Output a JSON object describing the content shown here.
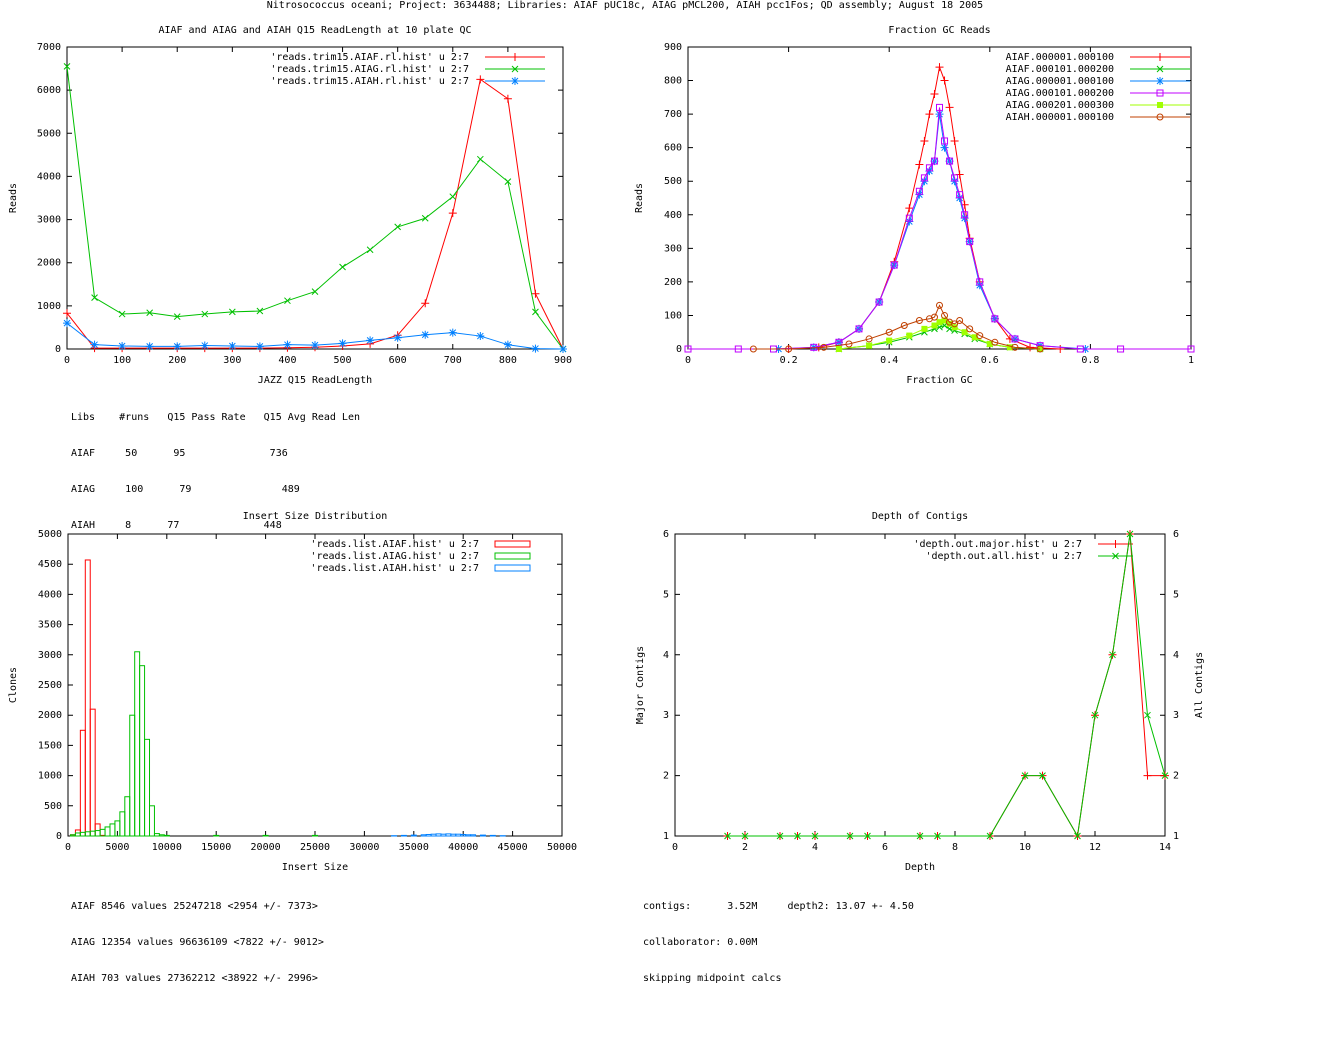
{
  "page_title": "Nitrosococcus oceani; Project: 3634488; Libraries: AIAF pUC18c, AIAG pMCL200, AIAH pcc1Fos; QD assembly; August 18 2005",
  "colors": {
    "red": "#ff0000",
    "green": "#00c000",
    "blue": "#0080ff",
    "magenta": "#c000ff",
    "lime": "#a0ff00",
    "brown": "#c04000"
  },
  "chart_data": [
    {
      "type": "line",
      "title": "AIAF and AIAG and AIAH Q15 ReadLength at 10 plate QC",
      "xlabel": "JAZZ Q15 ReadLength",
      "ylabel": "Reads",
      "xlim": [
        0,
        900
      ],
      "ylim": [
        0,
        7000
      ],
      "xticks": [
        0,
        100,
        200,
        300,
        400,
        500,
        600,
        700,
        800,
        900
      ],
      "yticks": [
        0,
        1000,
        2000,
        3000,
        4000,
        5000,
        6000,
        7000
      ],
      "legend": "top-right",
      "series": [
        {
          "name": "'reads.trim15.AIAF.rl.hist' u 2:7",
          "color": "#ff0000",
          "marker": "+",
          "x": [
            0,
            50,
            100,
            150,
            200,
            250,
            300,
            350,
            400,
            450,
            500,
            550,
            600,
            650,
            700,
            750,
            800,
            850,
            900
          ],
          "y": [
            830,
            20,
            20,
            20,
            20,
            20,
            20,
            20,
            30,
            40,
            70,
            120,
            320,
            1060,
            3150,
            6250,
            5800,
            1280,
            0
          ]
        },
        {
          "name": "'reads.trim15.AIAG.rl.hist' u 2:7",
          "color": "#00c000",
          "marker": "x",
          "x": [
            0,
            50,
            100,
            150,
            200,
            250,
            300,
            350,
            400,
            450,
            500,
            550,
            600,
            650,
            700,
            750,
            800,
            850,
            900
          ],
          "y": [
            6550,
            1190,
            810,
            840,
            750,
            810,
            860,
            880,
            1120,
            1330,
            1900,
            2300,
            2830,
            3030,
            3530,
            4400,
            3880,
            860,
            0
          ]
        },
        {
          "name": "'reads.trim15.AIAH.rl.hist' u 2:7",
          "color": "#0080ff",
          "marker": "*",
          "x": [
            0,
            50,
            100,
            150,
            200,
            250,
            300,
            350,
            400,
            450,
            500,
            550,
            600,
            650,
            700,
            750,
            800,
            850,
            900
          ],
          "y": [
            600,
            100,
            70,
            60,
            60,
            80,
            70,
            60,
            100,
            90,
            130,
            200,
            260,
            330,
            380,
            300,
            100,
            10,
            0
          ]
        }
      ],
      "stats_lines": [
        "Libs    #runs   Q15 Pass Rate   Q15 Avg Read Len",
        "AIAF     50      95              736",
        "AIAG     100      79               489",
        "AIAH     8      77              448"
      ]
    },
    {
      "type": "line",
      "title": "Fraction GC Reads",
      "xlabel": "Fraction GC",
      "ylabel": "Reads",
      "xlim": [
        0,
        1
      ],
      "ylim": [
        0,
        900
      ],
      "xticks": [
        0,
        0.2,
        0.4,
        0.6,
        0.8,
        1
      ],
      "yticks": [
        0,
        100,
        200,
        300,
        400,
        500,
        600,
        700,
        800,
        900
      ],
      "legend": "top-right",
      "series": [
        {
          "name": "AIAF.000001.000100",
          "color": "#ff0000",
          "marker": "+",
          "x": [
            0.2,
            0.26,
            0.3,
            0.34,
            0.38,
            0.41,
            0.44,
            0.46,
            0.47,
            0.48,
            0.49,
            0.5,
            0.51,
            0.52,
            0.53,
            0.54,
            0.55,
            0.56,
            0.58,
            0.61,
            0.64,
            0.68,
            0.74
          ],
          "y": [
            0,
            5,
            20,
            60,
            140,
            260,
            420,
            550,
            620,
            700,
            760,
            840,
            800,
            720,
            620,
            520,
            430,
            330,
            200,
            90,
            30,
            5,
            0
          ]
        },
        {
          "name": "AIAF.000101.000200",
          "color": "#00c000",
          "marker": "x",
          "x": [
            0.3,
            0.36,
            0.4,
            0.44,
            0.47,
            0.49,
            0.5,
            0.51,
            0.52,
            0.53,
            0.55,
            0.57,
            0.6,
            0.64,
            0.7
          ],
          "y": [
            0,
            10,
            20,
            35,
            50,
            60,
            65,
            70,
            60,
            55,
            45,
            30,
            15,
            5,
            0
          ]
        },
        {
          "name": "AIAG.000001.000100",
          "color": "#0080ff",
          "marker": "*",
          "x": [
            0.18,
            0.25,
            0.3,
            0.34,
            0.38,
            0.41,
            0.44,
            0.46,
            0.47,
            0.48,
            0.49,
            0.5,
            0.51,
            0.52,
            0.53,
            0.54,
            0.55,
            0.56,
            0.58,
            0.61,
            0.65,
            0.7,
            0.79
          ],
          "y": [
            0,
            5,
            20,
            60,
            140,
            250,
            380,
            460,
            500,
            530,
            560,
            700,
            600,
            560,
            500,
            450,
            390,
            320,
            190,
            90,
            30,
            10,
            0
          ]
        },
        {
          "name": "AIAG.000101.000200",
          "color": "#c000ff",
          "marker": "sq",
          "x": [
            0,
            0.1,
            0.17,
            0.25,
            0.3,
            0.34,
            0.38,
            0.41,
            0.44,
            0.46,
            0.47,
            0.48,
            0.49,
            0.5,
            0.51,
            0.52,
            0.53,
            0.54,
            0.55,
            0.56,
            0.58,
            0.61,
            0.65,
            0.7,
            0.78,
            0.86,
            1.0
          ],
          "y": [
            0,
            0,
            0,
            5,
            20,
            60,
            140,
            250,
            390,
            470,
            510,
            540,
            560,
            720,
            620,
            560,
            510,
            460,
            400,
            320,
            200,
            90,
            30,
            10,
            0,
            0,
            0
          ]
        },
        {
          "name": "AIAG.000201.000300",
          "color": "#a0ff00",
          "marker": "fsq",
          "x": [
            0.3,
            0.36,
            0.4,
            0.44,
            0.47,
            0.49,
            0.5,
            0.51,
            0.52,
            0.53,
            0.55,
            0.57,
            0.6,
            0.64,
            0.7
          ],
          "y": [
            0,
            10,
            25,
            40,
            60,
            70,
            80,
            85,
            75,
            65,
            50,
            35,
            15,
            5,
            0
          ]
        },
        {
          "name": "AIAH.000001.000100",
          "color": "#c04000",
          "marker": "o",
          "x": [
            0.13,
            0.2,
            0.27,
            0.32,
            0.36,
            0.4,
            0.43,
            0.46,
            0.48,
            0.49,
            0.5,
            0.51,
            0.52,
            0.53,
            0.54,
            0.56,
            0.58,
            0.61,
            0.65,
            0.7
          ],
          "y": [
            0,
            0,
            5,
            15,
            30,
            50,
            70,
            85,
            90,
            95,
            130,
            100,
            80,
            75,
            85,
            60,
            40,
            20,
            5,
            0
          ]
        }
      ]
    },
    {
      "type": "bar",
      "title": "Insert Size Distribution",
      "xlabel": "Insert Size",
      "ylabel": "Clones",
      "xlim": [
        0,
        50000
      ],
      "ylim": [
        0,
        5000
      ],
      "xticks": [
        0,
        5000,
        10000,
        15000,
        20000,
        25000,
        30000,
        35000,
        40000,
        45000,
        50000
      ],
      "yticks": [
        0,
        500,
        1000,
        1500,
        2000,
        2500,
        3000,
        3500,
        4000,
        4500,
        5000
      ],
      "bin_width": 500,
      "legend": "top-right",
      "series": [
        {
          "name": "'reads.list.AIAF.hist' u 2:7",
          "color": "#ff0000",
          "x": [
            500,
            1000,
            1500,
            2000,
            2500,
            3000,
            3500
          ],
          "y": [
            20,
            100,
            1750,
            4570,
            2100,
            200,
            10
          ]
        },
        {
          "name": "'reads.list.AIAG.hist' u 2:7",
          "color": "#00c000",
          "x": [
            500,
            1000,
            1500,
            2000,
            2500,
            3000,
            3500,
            4000,
            4500,
            5000,
            5500,
            6000,
            6500,
            7000,
            7500,
            8000,
            8500,
            9000,
            9500,
            10000,
            15000,
            20000,
            25000,
            28000
          ],
          "y": [
            20,
            50,
            60,
            70,
            80,
            90,
            110,
            150,
            200,
            250,
            400,
            650,
            2000,
            3050,
            2820,
            1600,
            500,
            40,
            20,
            10,
            10,
            10,
            10,
            0
          ]
        },
        {
          "name": "'reads.list.AIAH.hist' u 2:7",
          "color": "#0080ff",
          "x": [
            33000,
            34000,
            35000,
            36000,
            36500,
            37000,
            37500,
            38000,
            38500,
            39000,
            39500,
            40000,
            40500,
            41000,
            42000,
            43000,
            44000
          ],
          "y": [
            5,
            10,
            15,
            20,
            25,
            30,
            35,
            30,
            35,
            30,
            30,
            25,
            20,
            20,
            15,
            10,
            5
          ]
        }
      ],
      "stats_lines": [
        "AIAF 8546 values 25247218 <2954 +/- 7373>",
        "AIAG 12354 values 96636109 <7822 +/- 9012>",
        "AIAH 703 values 27362212 <38922 +/- 2996>"
      ]
    },
    {
      "type": "line",
      "title": "Depth of Contigs",
      "xlabel": "Depth",
      "ylabel": "Major Contigs",
      "y2label": "All Contigs",
      "xlim": [
        0,
        14
      ],
      "ylim": [
        1,
        6
      ],
      "y2lim": [
        1,
        6
      ],
      "xticks": [
        0,
        2,
        4,
        6,
        8,
        10,
        12,
        14
      ],
      "yticks": [
        1,
        2,
        3,
        4,
        5,
        6
      ],
      "legend": "top-right",
      "series": [
        {
          "name": "'depth.out.major.hist' u 2:7",
          "color": "#ff0000",
          "marker": "+",
          "x": [
            1.5,
            2,
            3,
            3.5,
            4,
            5,
            5.5,
            7,
            7.5,
            9,
            10,
            10.5,
            11.5,
            12,
            12.5,
            13,
            13.5,
            14
          ],
          "y": [
            1,
            1,
            1,
            1,
            1,
            1,
            1,
            1,
            1,
            1,
            2,
            2,
            1,
            3,
            4,
            6,
            2,
            2
          ]
        },
        {
          "name": "'depth.out.all.hist' u 2:7",
          "color": "#00c000",
          "marker": "x",
          "x": [
            1.5,
            2,
            3,
            3.5,
            4,
            5,
            5.5,
            7,
            7.5,
            9,
            10,
            10.5,
            11.5,
            12,
            12.5,
            13,
            13.5,
            14
          ],
          "y": [
            1,
            1,
            1,
            1,
            1,
            1,
            1,
            1,
            1,
            1,
            2,
            2,
            1,
            3,
            4,
            6,
            3,
            2
          ]
        }
      ],
      "stats_lines": [
        "contigs:      3.52M     depth2: 13.07 +- 4.50",
        "collaborator: 0.00M",
        "skipping midpoint calcs"
      ]
    }
  ]
}
